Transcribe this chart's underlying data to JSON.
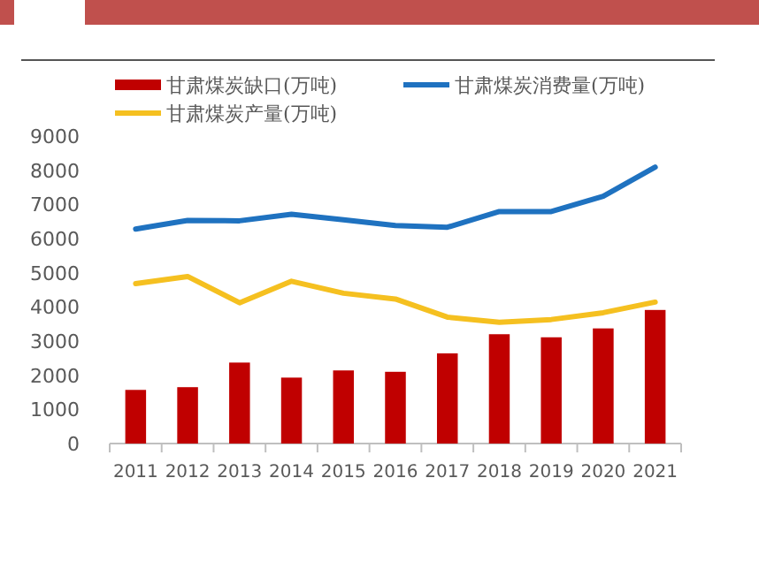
{
  "chart_data": {
    "type": "bar",
    "categories": [
      "2011",
      "2012",
      "2013",
      "2014",
      "2015",
      "2016",
      "2017",
      "2018",
      "2019",
      "2020",
      "2021"
    ],
    "series": [
      {
        "name": "甘肃煤炭缺口(万吨)",
        "color": "#c00000",
        "values": [
          1570,
          1650,
          2370,
          1930,
          2140,
          2100,
          2640,
          3200,
          3110,
          3370,
          3910
        ]
      },
      {
        "name": "甘肃煤炭消费量(万吨)",
        "type": "line",
        "color": "#1f72c0",
        "values": [
          6280,
          6530,
          6520,
          6710,
          6550,
          6380,
          6330,
          6790,
          6790,
          7240,
          8090
        ]
      },
      {
        "name": "甘肃煤炭产量(万吨)",
        "type": "line",
        "color": "#f5c020",
        "values": [
          4680,
          4890,
          4120,
          4750,
          4400,
          4230,
          3700,
          3550,
          3630,
          3830,
          4140
        ]
      }
    ],
    "ylim": [
      0,
      9000
    ],
    "yticks": [
      0,
      1000,
      2000,
      3000,
      4000,
      5000,
      6000,
      7000,
      8000,
      9000
    ],
    "grid": false,
    "legend": "top"
  }
}
